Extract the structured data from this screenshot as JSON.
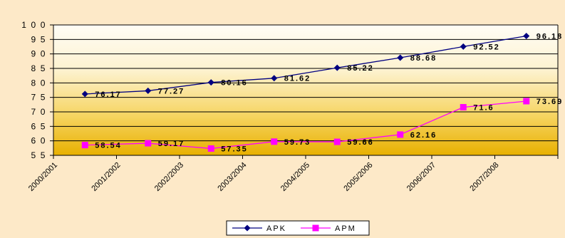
{
  "chart_data": {
    "type": "line",
    "categories": [
      "2000/2001",
      "2001/2002",
      "2002/2003",
      "2003/2004",
      "2004/2005",
      "2005/2006",
      "2006/2007",
      "2007/2008"
    ],
    "series": [
      {
        "name": "APK",
        "values": [
          76.17,
          77.27,
          80.16,
          81.62,
          85.22,
          88.68,
          92.52,
          96.18
        ],
        "labels": [
          "76.17",
          "77.27",
          "80.16",
          "81.62",
          "85.22",
          "88.68",
          "92.52",
          "96.18"
        ],
        "color": "#000080",
        "marker": "diamond"
      },
      {
        "name": "APM",
        "values": [
          58.54,
          59.17,
          57.35,
          59.73,
          59.66,
          62.16,
          71.6,
          73.69
        ],
        "labels": [
          "58.54",
          "59.17",
          "57.35",
          "59.73",
          "59.66",
          "62.16",
          "71.6",
          "73.69"
        ],
        "color": "#ff00ff",
        "marker": "square"
      }
    ],
    "ylim": [
      55,
      100
    ],
    "yticks": [
      55,
      60,
      65,
      70,
      75,
      80,
      85,
      90,
      95,
      100
    ],
    "ytick_labels": [
      "5 5",
      "6 0",
      "6 5",
      "7 0",
      "7 5",
      "8 0",
      "8 5",
      "9 0",
      "9 5",
      "1 0 0"
    ],
    "title": "",
    "xlabel": "",
    "ylabel": "",
    "grid": true,
    "legend": "bottom-center",
    "colors": {
      "background": "#fde9c8",
      "plot_top": "#fffdf5",
      "plot_bottom": "#ecb500",
      "gridline": "#000000"
    }
  }
}
